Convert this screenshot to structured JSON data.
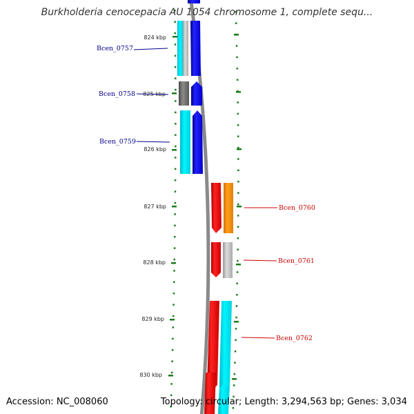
{
  "title": "Burkholderia cenocepacia AU 1054 chromosome 1, complete sequ...",
  "footer": {
    "accession": "Accession: NC_008060",
    "topology": "Topology: circular; Length: 3,294,563 bp; Genes: 3,034"
  },
  "colors": {
    "left_label": "#00008b",
    "right_label": "#cc0000",
    "ticks": "#1a7a1a",
    "backbone": "#888888"
  },
  "ticks": [
    {
      "label": "824 kbp"
    },
    {
      "label": "825 kbp"
    },
    {
      "label": "826 kbp"
    },
    {
      "label": "827 kbp"
    },
    {
      "label": "828 kbp"
    },
    {
      "label": "829 kbp"
    },
    {
      "label": "830 kbp"
    }
  ],
  "genes": [
    {
      "label": "Bcen_0757",
      "side": "left",
      "strand": "forward",
      "cds_color": "#0000ee",
      "feature_color": "#c8c8c8"
    },
    {
      "label": "Bcen_0758",
      "side": "left",
      "strand": "forward",
      "cds_color": "#0000ee",
      "feature_color": "#6e6e6e"
    },
    {
      "label": "Bcen_0759",
      "side": "left",
      "strand": "forward",
      "cds_color": "#0000ee",
      "feature_color": "#00e5ee"
    },
    {
      "label": "Bcen_0760",
      "side": "right",
      "strand": "reverse",
      "cds_color": "#ee0000",
      "feature_color": "#ff8c00"
    },
    {
      "label": "Bcen_0761",
      "side": "right",
      "strand": "reverse",
      "cds_color": "#ee0000",
      "feature_color": "#bdbdbd"
    },
    {
      "label": "Bcen_0762",
      "side": "right",
      "strand": "reverse",
      "cds_color": "#ee0000",
      "feature_color": "#00e5ee"
    }
  ]
}
